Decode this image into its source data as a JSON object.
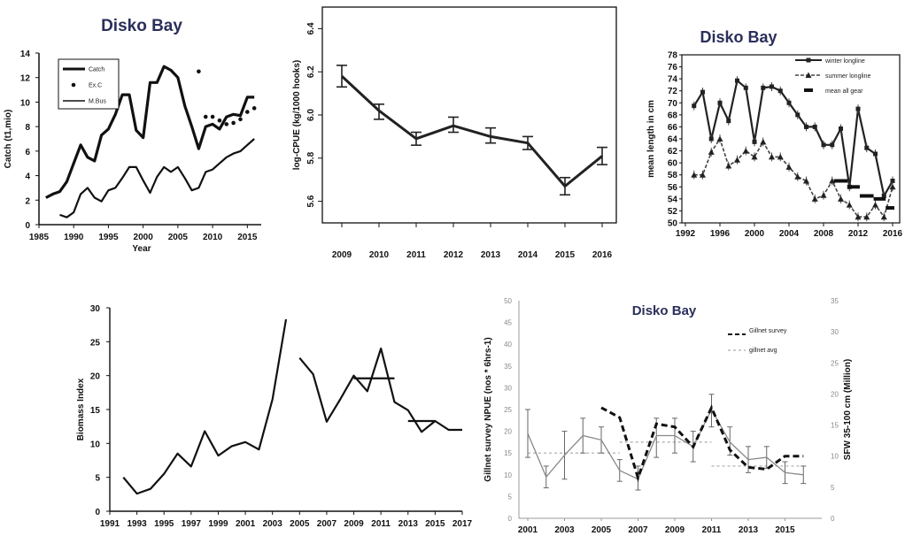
{
  "chart_data": [
    {
      "type": "line",
      "title": "Disko Bay",
      "xlabel": "Year",
      "ylabel": "Catch (t1,mio)",
      "xlim": [
        1985,
        2017
      ],
      "ylim": [
        0,
        14
      ],
      "x_ticks": [
        "1985",
        "1990",
        "1995",
        "2000",
        "2005",
        "2010",
        "2015"
      ],
      "y_ticks": [
        "0",
        "2",
        "4",
        "6",
        "8",
        "10",
        "12",
        "14"
      ],
      "legend": [
        "Catch",
        "Ex.C",
        "M.Bus"
      ],
      "grid": false,
      "series": [
        {
          "name": "Catch",
          "style": "thick",
          "x": [
            1986,
            1987,
            1988,
            1989,
            1990,
            1991,
            1992,
            1993,
            1994,
            1995,
            1996,
            1997,
            1998,
            1999,
            2000,
            2001,
            2002,
            2003,
            2004,
            2005,
            2006,
            2007,
            2008,
            2009,
            2010,
            2011,
            2012,
            2013,
            2014,
            2015,
            2016
          ],
          "y": [
            2.2,
            2.5,
            2.7,
            3.5,
            5.0,
            6.5,
            5.5,
            5.2,
            7.3,
            7.8,
            9.0,
            10.6,
            10.6,
            7.7,
            7.1,
            11.6,
            11.6,
            12.9,
            12.6,
            12.0,
            9.7,
            8.0,
            6.2,
            8.0,
            8.2,
            7.8,
            8.8,
            9.0,
            8.9,
            10.4,
            10.4
          ]
        },
        {
          "name": "Ex.C",
          "style": "dots",
          "x": [
            2008,
            2009,
            2010,
            2011,
            2012,
            2013,
            2014,
            2015,
            2016
          ],
          "y": [
            12.5,
            8.8,
            8.8,
            8.5,
            8.2,
            8.3,
            8.6,
            9.2,
            9.5
          ]
        },
        {
          "name": "M.Bus",
          "style": "thin",
          "x": [
            1988,
            1989,
            1990,
            1991,
            1992,
            1993,
            1994,
            1995,
            1996,
            1997,
            1998,
            1999,
            2000,
            2001,
            2002,
            2003,
            2004,
            2005,
            2006,
            2007,
            2008,
            2009,
            2010,
            2011,
            2012,
            2013,
            2014,
            2015,
            2016
          ],
          "y": [
            0.8,
            0.6,
            1.0,
            2.5,
            3.0,
            2.2,
            1.9,
            2.8,
            3.0,
            3.8,
            4.7,
            4.7,
            3.6,
            2.6,
            3.9,
            4.7,
            4.3,
            4.7,
            3.8,
            2.8,
            3.0,
            4.3,
            4.5,
            5.0,
            5.5,
            5.8,
            6.0,
            6.5,
            7.0
          ]
        }
      ]
    },
    {
      "type": "line",
      "title": "",
      "xlabel": "",
      "ylabel": "log-CPUE (kg/1000 hooks)",
      "ylim": [
        5.5,
        6.5
      ],
      "categories": [
        "2009",
        "2010",
        "2011",
        "2012",
        "2013",
        "2014",
        "2015",
        "2016"
      ],
      "y_ticks": [
        "5.6",
        "5.8",
        "6.0",
        "6.2",
        "6.4"
      ],
      "grid": false,
      "series": [
        {
          "name": "",
          "values": [
            6.18,
            6.02,
            5.89,
            5.95,
            5.9,
            5.87,
            5.67,
            5.81
          ],
          "error_low": [
            6.13,
            5.98,
            5.86,
            5.92,
            5.87,
            5.84,
            5.63,
            5.77
          ],
          "error_high": [
            6.23,
            6.05,
            5.92,
            5.99,
            5.94,
            5.9,
            5.71,
            5.85
          ]
        }
      ]
    },
    {
      "type": "line",
      "title": "Disko Bay",
      "xlabel": "",
      "ylabel": "mean length in cm",
      "xlim": [
        1992,
        2016
      ],
      "ylim": [
        50,
        78
      ],
      "x_ticks": [
        "1992",
        "1996",
        "2000",
        "2004",
        "2008",
        "2012",
        "2016"
      ],
      "y_ticks": [
        "50",
        "52",
        "54",
        "56",
        "58",
        "60",
        "62",
        "64",
        "66",
        "68",
        "70",
        "72",
        "74",
        "76",
        "78"
      ],
      "legend": [
        "winter longline",
        "summer longline",
        "mean all gear"
      ],
      "legend_position": "top-right",
      "grid": false,
      "series": [
        {
          "name": "winter longline",
          "marker": "square",
          "x": [
            1993,
            1994,
            1995,
            1996,
            1997,
            1998,
            1999,
            2000,
            2001,
            2002,
            2003,
            2004,
            2005,
            2006,
            2007,
            2008,
            2009,
            2010,
            2011,
            2012,
            2013,
            2014,
            2015,
            2016
          ],
          "y": [
            69.5,
            71.8,
            64.0,
            70.0,
            67.0,
            73.7,
            72.5,
            63.5,
            72.5,
            72.7,
            72.0,
            70.0,
            68.0,
            66.0,
            66.0,
            63.0,
            63.0,
            65.7,
            56.0,
            69.0,
            62.5,
            61.5,
            54.5,
            57.0
          ]
        },
        {
          "name": "summer longline",
          "marker": "triangle",
          "x": [
            1993,
            1994,
            1995,
            1996,
            1997,
            1998,
            1999,
            2000,
            2001,
            2002,
            2003,
            2004,
            2005,
            2006,
            2007,
            2008,
            2009,
            2010,
            2011,
            2012,
            2013,
            2014,
            2015,
            2016
          ],
          "y": [
            58.0,
            58.0,
            61.8,
            64.0,
            59.5,
            60.5,
            62.0,
            61.0,
            63.5,
            61.0,
            61.0,
            59.3,
            57.7,
            57.0,
            54.0,
            54.6,
            57.0,
            54.0,
            53.0,
            51.0,
            51.0,
            53.0,
            51.0,
            56.0
          ]
        },
        {
          "name": "mean all gear",
          "marker": "bar",
          "segments": [
            [
              2009.2,
              2010.8,
              57.0
            ],
            [
              2010.8,
              2012.2,
              56.0
            ],
            [
              2012.2,
              2013.8,
              54.5
            ],
            [
              2013.8,
              2015.2,
              54.0
            ],
            [
              2015.2,
              2016.2,
              52.5
            ]
          ]
        }
      ]
    },
    {
      "type": "line",
      "title": "",
      "xlabel": "",
      "ylabel": "Biomass Index",
      "xlim": [
        1991,
        2017
      ],
      "ylim": [
        0,
        30
      ],
      "x_ticks": [
        "1991",
        "1993",
        "1995",
        "1997",
        "1999",
        "2001",
        "2003",
        "2005",
        "2007",
        "2009",
        "2011",
        "2013",
        "2015",
        "2017"
      ],
      "y_ticks": [
        "0",
        "5",
        "10",
        "15",
        "20",
        "25",
        "30"
      ],
      "grid": false,
      "series": [
        {
          "name": "",
          "x": [
            1992,
            1993,
            1994,
            1995,
            1996,
            1997,
            1998,
            1999,
            2000,
            2001,
            2002,
            2003,
            2004
          ],
          "y": [
            5.0,
            2.6,
            3.3,
            5.5,
            8.5,
            6.6,
            11.8,
            8.2,
            9.6,
            10.2,
            9.1,
            16.5,
            28.3
          ]
        },
        {
          "name": "",
          "x": [
            2005,
            2006,
            2007,
            2008,
            2009,
            2010,
            2011,
            2012,
            2013,
            2014,
            2015,
            2016,
            2017
          ],
          "y": [
            22.6,
            20.2,
            13.2,
            16.5,
            20.0,
            17.7,
            24.0,
            16.1,
            14.9,
            11.7,
            13.3,
            12.0,
            12.0
          ]
        },
        {
          "name": "",
          "style": "avg",
          "segments": [
            [
              2009,
              2012,
              19.6
            ],
            [
              2013,
              2015,
              13.3
            ]
          ]
        }
      ]
    },
    {
      "type": "line",
      "title": "Disko Bay",
      "xlabel": "",
      "ylabel": "Gillnet survey NPUE (nos * 6hrs-1)",
      "ylabel_right": "SFW 35-100 cm (Million)",
      "xlim": [
        2001,
        2017
      ],
      "ylim": [
        0,
        50
      ],
      "ylim_right": [
        0,
        35
      ],
      "x_ticks": [
        "2001",
        "2003",
        "2005",
        "2007",
        "2009",
        "2011",
        "2013",
        "2015"
      ],
      "y_ticks": [
        "0",
        "5",
        "10",
        "15",
        "20",
        "25",
        "30",
        "35",
        "40",
        "45",
        "50"
      ],
      "y_ticks_right": [
        "0",
        "5",
        "10",
        "15",
        "20",
        "25",
        "30",
        "35"
      ],
      "legend": [
        "Gillnet survey",
        "gillnet avg"
      ],
      "grid": false,
      "series": [
        {
          "name": "Gillnet survey",
          "axis": "left",
          "style": "thin-errorbars",
          "x": [
            2001,
            2002,
            2003,
            2004,
            2005,
            2006,
            2007,
            2008,
            2009,
            2010,
            2011,
            2012,
            2013,
            2014,
            2015,
            2016
          ],
          "y": [
            19.5,
            9.5,
            14.5,
            19.0,
            18.0,
            11.0,
            9.0,
            19.0,
            19.0,
            16.5,
            25.0,
            17.5,
            13.5,
            14.0,
            10.5,
            10.0
          ],
          "error_low": [
            14.0,
            7.0,
            9.0,
            15.0,
            15.0,
            8.5,
            6.5,
            14.0,
            15.0,
            13.0,
            21.0,
            14.5,
            10.5,
            11.5,
            8.0,
            8.0
          ],
          "error_high": [
            25.0,
            12.0,
            20.0,
            23.0,
            21.0,
            13.5,
            12.0,
            23.0,
            23.0,
            20.0,
            28.5,
            21.0,
            16.5,
            16.5,
            13.0,
            12.0
          ]
        },
        {
          "name": "gillnet avg",
          "axis": "left",
          "style": "dashed-gray",
          "segments": [
            [
              2001,
              2006,
              15.0
            ],
            [
              2006,
              2011,
              17.5
            ],
            [
              2011,
              2016,
              12.0
            ]
          ]
        },
        {
          "name": "",
          "axis": "right",
          "style": "dashed-thick",
          "x": [
            2005,
            2006,
            2007,
            2008,
            2009,
            2010,
            2011,
            2012,
            2013,
            2014,
            2015,
            2016
          ],
          "y": [
            17.8,
            16.2,
            6.5,
            15.2,
            14.7,
            11.5,
            17.8,
            11.0,
            8.2,
            7.9,
            10.0,
            10.0
          ]
        }
      ]
    }
  ]
}
